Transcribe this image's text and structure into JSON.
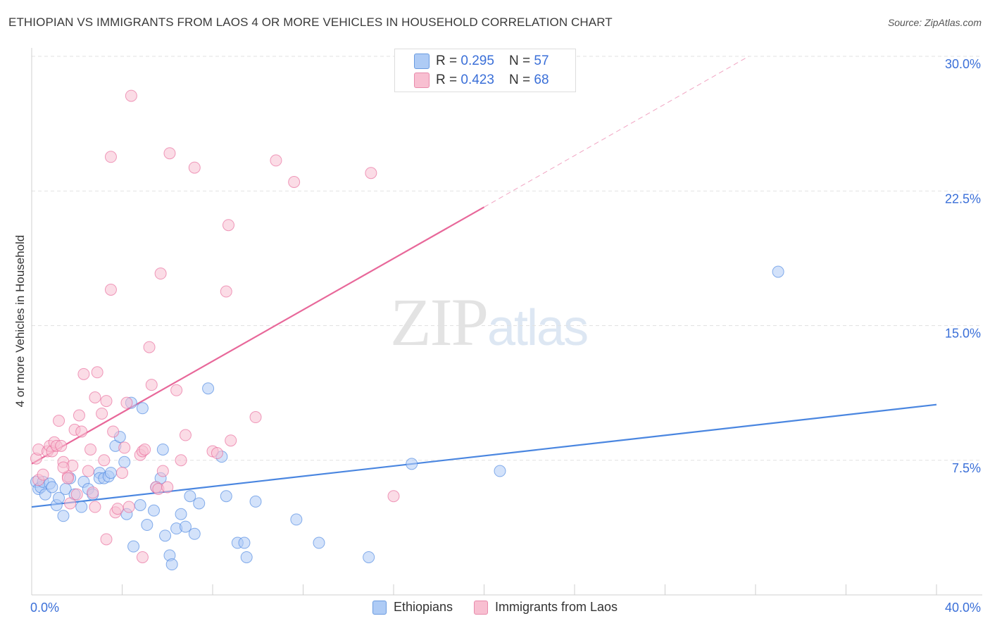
{
  "header": {
    "title": "ETHIOPIAN VS IMMIGRANTS FROM LAOS 4 OR MORE VEHICLES IN HOUSEHOLD CORRELATION CHART",
    "source": "Source: ZipAtlas.com"
  },
  "watermark": {
    "zip": "ZIP",
    "atlas": "atlas"
  },
  "stats_legend": {
    "rows": [
      {
        "r_label": "R = ",
        "r_value": "0.295",
        "n_label": "N = ",
        "n_value": "57",
        "color": "#aecbf5"
      },
      {
        "r_label": "R = ",
        "r_value": "0.423",
        "n_label": "N = ",
        "n_value": "68",
        "color": "#f8bfd1"
      }
    ]
  },
  "bottom_legend": [
    {
      "label": "Ethiopians",
      "color": "#aecbf5"
    },
    {
      "label": "Immigrants from Laos",
      "color": "#f8bfd1"
    }
  ],
  "chart_data": {
    "type": "scatter",
    "title": "ETHIOPIAN VS IMMIGRANTS FROM LAOS 4 OR MORE VEHICLES IN HOUSEHOLD CORRELATION CHART",
    "xlabel": "",
    "ylabel": "4 or more Vehicles in Household",
    "xlim": [
      0,
      40
    ],
    "ylim": [
      0,
      30
    ],
    "x_tick_labels": [
      "0.0%",
      "40.0%"
    ],
    "y_ticks": [
      7.5,
      15.0,
      22.5,
      30.0
    ],
    "y_tick_labels": [
      "7.5%",
      "15.0%",
      "22.5%",
      "30.0%"
    ],
    "grid": "horizontal dashed",
    "series": [
      {
        "name": "Ethiopians",
        "color": "#4a86e0",
        "fill": "#aecbf5",
        "trend": {
          "x": [
            0,
            40
          ],
          "y": [
            4.9,
            10.6
          ],
          "style": "solid"
        },
        "points": [
          [
            0.2,
            6.3
          ],
          [
            0.3,
            5.9
          ],
          [
            0.4,
            6.0
          ],
          [
            0.5,
            6.3
          ],
          [
            0.6,
            5.6
          ],
          [
            0.8,
            6.2
          ],
          [
            0.9,
            6.0
          ],
          [
            1.1,
            5.0
          ],
          [
            1.2,
            5.4
          ],
          [
            1.4,
            4.4
          ],
          [
            1.5,
            5.9
          ],
          [
            1.7,
            6.5
          ],
          [
            1.9,
            5.6
          ],
          [
            2.2,
            4.9
          ],
          [
            2.3,
            6.3
          ],
          [
            2.5,
            5.9
          ],
          [
            2.7,
            5.6
          ],
          [
            3.0,
            6.8
          ],
          [
            3.0,
            6.5
          ],
          [
            3.2,
            6.5
          ],
          [
            3.4,
            6.6
          ],
          [
            3.5,
            6.8
          ],
          [
            3.7,
            8.3
          ],
          [
            3.9,
            8.8
          ],
          [
            4.1,
            7.4
          ],
          [
            4.2,
            4.5
          ],
          [
            4.4,
            10.7
          ],
          [
            4.5,
            2.7
          ],
          [
            4.8,
            5.0
          ],
          [
            4.9,
            10.4
          ],
          [
            5.1,
            3.9
          ],
          [
            5.4,
            4.7
          ],
          [
            5.5,
            6.0
          ],
          [
            5.7,
            6.5
          ],
          [
            5.8,
            8.1
          ],
          [
            5.9,
            3.3
          ],
          [
            6.1,
            2.2
          ],
          [
            6.2,
            1.7
          ],
          [
            6.4,
            3.7
          ],
          [
            6.6,
            4.5
          ],
          [
            6.8,
            3.8
          ],
          [
            7.0,
            5.5
          ],
          [
            7.2,
            3.4
          ],
          [
            7.4,
            5.1
          ],
          [
            7.8,
            11.5
          ],
          [
            8.4,
            7.7
          ],
          [
            8.6,
            5.5
          ],
          [
            9.1,
            2.9
          ],
          [
            9.4,
            2.9
          ],
          [
            9.5,
            2.1
          ],
          [
            9.9,
            5.2
          ],
          [
            11.7,
            4.2
          ],
          [
            12.7,
            2.9
          ],
          [
            14.9,
            2.1
          ],
          [
            16.8,
            7.3
          ],
          [
            20.7,
            6.9
          ],
          [
            33.0,
            18.0
          ]
        ]
      },
      {
        "name": "Immigrants from Laos",
        "color": "#e8689a",
        "fill": "#f8bfd1",
        "trend": {
          "x": [
            0,
            20
          ],
          "y": [
            7.3,
            21.6
          ],
          "extended_to": [
            31.7,
            30.0
          ],
          "style": "solid-then-dashed"
        },
        "points": [
          [
            0.2,
            7.6
          ],
          [
            0.3,
            8.1
          ],
          [
            0.3,
            6.4
          ],
          [
            0.5,
            6.7
          ],
          [
            0.7,
            8.0
          ],
          [
            0.8,
            8.3
          ],
          [
            0.9,
            8.0
          ],
          [
            1.0,
            8.5
          ],
          [
            1.1,
            8.3
          ],
          [
            1.2,
            9.7
          ],
          [
            1.3,
            8.3
          ],
          [
            1.4,
            7.4
          ],
          [
            1.6,
            6.6
          ],
          [
            1.7,
            5.1
          ],
          [
            1.8,
            7.2
          ],
          [
            1.9,
            9.2
          ],
          [
            2.0,
            5.6
          ],
          [
            2.1,
            10.0
          ],
          [
            2.2,
            9.1
          ],
          [
            2.3,
            12.3
          ],
          [
            2.5,
            6.9
          ],
          [
            2.6,
            8.1
          ],
          [
            2.7,
            5.7
          ],
          [
            2.8,
            4.9
          ],
          [
            2.8,
            11.0
          ],
          [
            2.9,
            12.4
          ],
          [
            3.1,
            10.1
          ],
          [
            3.2,
            7.5
          ],
          [
            3.3,
            10.8
          ],
          [
            3.3,
            3.1
          ],
          [
            3.5,
            24.4
          ],
          [
            3.5,
            17.0
          ],
          [
            3.6,
            9.1
          ],
          [
            3.7,
            4.6
          ],
          [
            3.8,
            4.8
          ],
          [
            4.0,
            6.8
          ],
          [
            4.1,
            8.2
          ],
          [
            4.2,
            10.7
          ],
          [
            4.4,
            27.8
          ],
          [
            4.8,
            7.8
          ],
          [
            4.9,
            8.0
          ],
          [
            4.9,
            2.1
          ],
          [
            5.0,
            8.1
          ],
          [
            5.2,
            13.8
          ],
          [
            5.3,
            11.7
          ],
          [
            5.5,
            6.0
          ],
          [
            5.6,
            5.9
          ],
          [
            5.7,
            17.9
          ],
          [
            5.8,
            6.9
          ],
          [
            6.1,
            24.6
          ],
          [
            6.4,
            11.4
          ],
          [
            6.6,
            7.5
          ],
          [
            6.8,
            8.9
          ],
          [
            7.2,
            23.8
          ],
          [
            8.0,
            8.0
          ],
          [
            8.2,
            7.9
          ],
          [
            8.7,
            20.6
          ],
          [
            8.6,
            16.9
          ],
          [
            8.8,
            8.6
          ],
          [
            9.9,
            9.9
          ],
          [
            10.8,
            24.2
          ],
          [
            11.6,
            23.0
          ],
          [
            15.0,
            23.5
          ],
          [
            16.0,
            5.5
          ],
          [
            6.0,
            6.0
          ],
          [
            4.3,
            4.9
          ],
          [
            1.6,
            6.5
          ],
          [
            1.4,
            7.1
          ]
        ]
      }
    ]
  }
}
